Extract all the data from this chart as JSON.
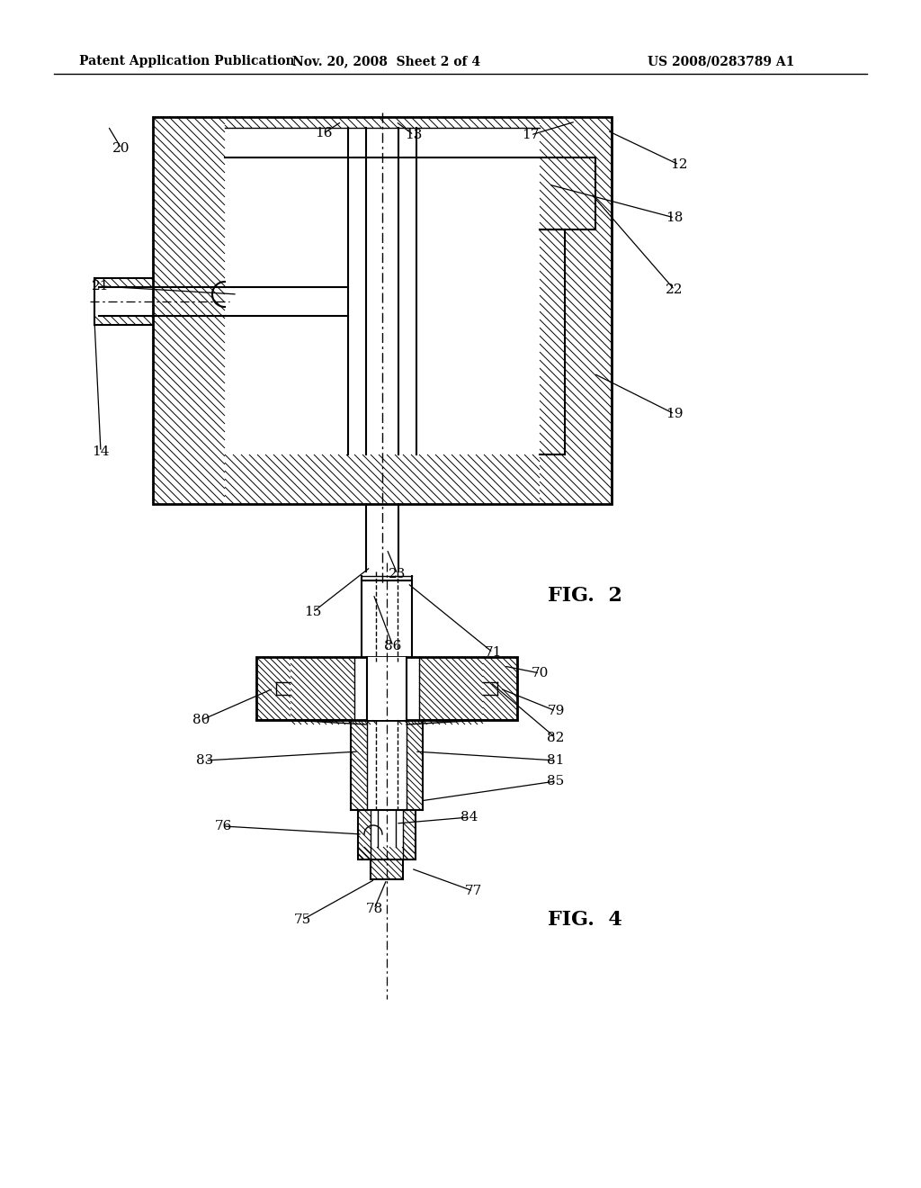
{
  "background_color": "#ffffff",
  "header_left": "Patent Application Publication",
  "header_center": "Nov. 20, 2008  Sheet 2 of 4",
  "header_right": "US 2008/0283789 A1",
  "line_color": "#000000"
}
